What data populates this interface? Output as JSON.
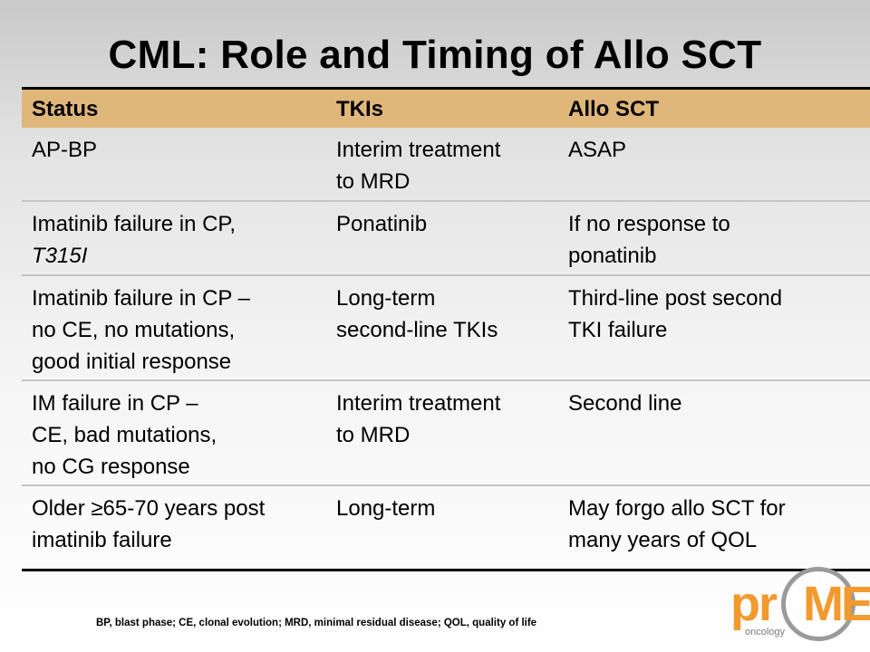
{
  "slide": {
    "title": "CML: Role and Timing of Allo SCT",
    "footnote": "BP, blast phase; CE, clonal evolution; MRD, minimal residual disease; QOL, quality of life"
  },
  "table": {
    "headers": [
      "Status",
      "TKIs",
      "Allo SCT"
    ],
    "rows": [
      {
        "status": [
          "AP-BP"
        ],
        "tkis": [
          "Interim treatment",
          "to MRD"
        ],
        "allo": [
          "ASAP"
        ]
      },
      {
        "status": [
          "Imatinib failure in CP,"
        ],
        "status_italic": "T315I",
        "tkis": [
          "Ponatinib"
        ],
        "allo": [
          "If no response to",
          "ponatinib"
        ]
      },
      {
        "status": [
          "Imatinib failure in CP –",
          "no CE, no mutations,",
          "good initial response"
        ],
        "tkis": [
          "Long-term",
          "second-line TKIs"
        ],
        "allo": [
          "Third-line post second",
          "TKI failure"
        ]
      },
      {
        "status": [
          "IM failure in CP –",
          "CE, bad mutations,",
          "no CG response"
        ],
        "tkis": [
          "Interim treatment",
          "to MRD"
        ],
        "allo": [
          "Second line"
        ]
      },
      {
        "status": [
          "Older ≥65-70 years post",
          "imatinib failure"
        ],
        "tkis": [
          "Long-term"
        ],
        "allo": [
          "May forgo allo SCT for",
          "many years of QOL"
        ]
      }
    ]
  },
  "logo": {
    "text_left": "pr",
    "text_right": "ME",
    "subtext": "oncology",
    "color": "#f29a2e"
  },
  "colors": {
    "header_bg": "#dfb77a",
    "row_separator": "#c3c3c3"
  }
}
